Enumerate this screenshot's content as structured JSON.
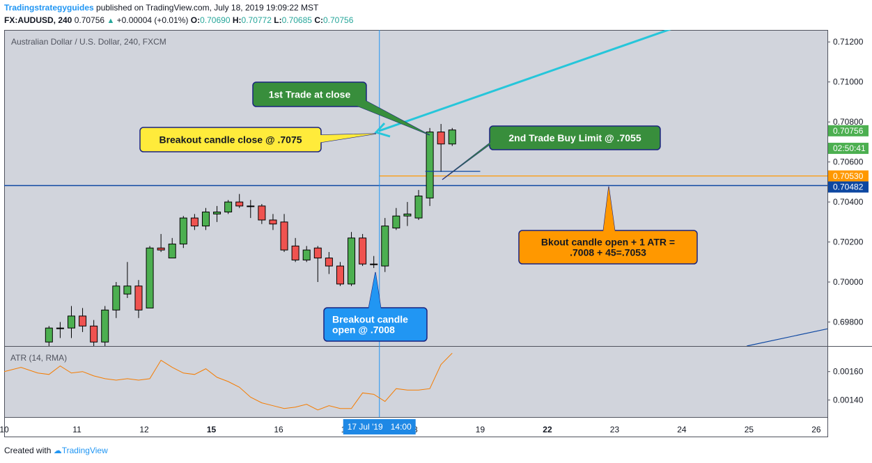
{
  "header": {
    "author": "Tradingstrategyguides",
    "published": " published on TradingView.com, July 18, 2019 19:09:22 MST",
    "symbol": "FX:AUDUSD, 240",
    "last": "0.70756",
    "change": "+0.00004 (+0.01%)",
    "o_label": "O:",
    "o_value": "0.70690",
    "h_label": "H:",
    "h_value": "0.70772",
    "l_label": "L:",
    "l_value": "0.70685",
    "c_label": "C:",
    "c_value": "0.70756"
  },
  "footer": {
    "created_with": "Created with",
    "brand": "TradingView"
  },
  "colors": {
    "background": "#d1d4dc",
    "up": "#4caf50",
    "down": "#ef5350",
    "atr_line": "#f57c00",
    "trend_cyan": "#26c6da",
    "hline_navy": "#0d47a1",
    "hline_orange": "#ff9800"
  },
  "chart_data": {
    "type": "candlestick",
    "title": "Australian Dollar / U.S. Dollar, 240, FXCM",
    "y_range": [
      0.6968,
      0.7126
    ],
    "y_ticks": [
      "0.71200",
      "0.71000",
      "0.70800",
      "0.70600",
      "0.70400",
      "0.70200",
      "0.70000",
      "0.69800"
    ],
    "x_ticks": [
      {
        "label": "10",
        "x": 0.0
      },
      {
        "label": "11",
        "x": 6.5
      },
      {
        "label": "12",
        "x": 12.5
      },
      {
        "label": "15",
        "x": 18.5
      },
      {
        "label": "16",
        "x": 24.5
      },
      {
        "label": "17",
        "x": 30.5
      },
      {
        "label": "18",
        "x": 36.5
      },
      {
        "label": "19",
        "x": 42.5
      },
      {
        "label": "22",
        "x": 48.5
      },
      {
        "label": "23",
        "x": 54.5
      },
      {
        "label": "24",
        "x": 60.5
      },
      {
        "label": "25",
        "x": 66.5
      },
      {
        "label": "26",
        "x": 72.5
      }
    ],
    "x_range": [
      0,
      73.5
    ],
    "candles": [
      {
        "x": 4,
        "o": 0.697,
        "h": 0.6978,
        "l": 0.6965,
        "c": 0.6977
      },
      {
        "x": 5,
        "o": 0.6977,
        "h": 0.698,
        "l": 0.6972,
        "c": 0.6977
      },
      {
        "x": 6,
        "o": 0.6977,
        "h": 0.6988,
        "l": 0.6972,
        "c": 0.6983
      },
      {
        "x": 7,
        "o": 0.6983,
        "h": 0.6987,
        "l": 0.6975,
        "c": 0.6978
      },
      {
        "x": 8,
        "o": 0.6978,
        "h": 0.6981,
        "l": 0.6968,
        "c": 0.697
      },
      {
        "x": 9,
        "o": 0.697,
        "h": 0.6988,
        "l": 0.6968,
        "c": 0.6986
      },
      {
        "x": 10,
        "o": 0.6986,
        "h": 0.7,
        "l": 0.6982,
        "c": 0.6998
      },
      {
        "x": 11,
        "o": 0.6994,
        "h": 0.701,
        "l": 0.6992,
        "c": 0.6998
      },
      {
        "x": 12,
        "o": 0.6998,
        "h": 0.7001,
        "l": 0.6982,
        "c": 0.6986
      },
      {
        "x": 13,
        "o": 0.6987,
        "h": 0.7018,
        "l": 0.6987,
        "c": 0.7017
      },
      {
        "x": 14,
        "o": 0.7017,
        "h": 0.7024,
        "l": 0.7015,
        "c": 0.7016
      },
      {
        "x": 15,
        "o": 0.7012,
        "h": 0.7022,
        "l": 0.7012,
        "c": 0.7019
      },
      {
        "x": 16,
        "o": 0.7019,
        "h": 0.7033,
        "l": 0.7017,
        "c": 0.7032
      },
      {
        "x": 17,
        "o": 0.7032,
        "h": 0.7034,
        "l": 0.7026,
        "c": 0.7028
      },
      {
        "x": 18,
        "o": 0.7028,
        "h": 0.7037,
        "l": 0.7026,
        "c": 0.7035
      },
      {
        "x": 19,
        "o": 0.7034,
        "h": 0.7038,
        "l": 0.703,
        "c": 0.7035
      },
      {
        "x": 20,
        "o": 0.7035,
        "h": 0.7041,
        "l": 0.7034,
        "c": 0.704
      },
      {
        "x": 21,
        "o": 0.704,
        "h": 0.7044,
        "l": 0.7037,
        "c": 0.7038
      },
      {
        "x": 22,
        "o": 0.7038,
        "h": 0.7041,
        "l": 0.7032,
        "c": 0.7038
      },
      {
        "x": 23,
        "o": 0.7038,
        "h": 0.7039,
        "l": 0.7029,
        "c": 0.7031
      },
      {
        "x": 24,
        "o": 0.7031,
        "h": 0.7034,
        "l": 0.7026,
        "c": 0.7029
      },
      {
        "x": 25,
        "o": 0.703,
        "h": 0.7034,
        "l": 0.7015,
        "c": 0.7016
      },
      {
        "x": 26,
        "o": 0.7018,
        "h": 0.7022,
        "l": 0.701,
        "c": 0.7011
      },
      {
        "x": 27,
        "o": 0.7011,
        "h": 0.7018,
        "l": 0.701,
        "c": 0.7016
      },
      {
        "x": 28,
        "o": 0.7017,
        "h": 0.7018,
        "l": 0.7,
        "c": 0.7012
      },
      {
        "x": 29,
        "o": 0.7012,
        "h": 0.7015,
        "l": 0.7004,
        "c": 0.7008
      },
      {
        "x": 30,
        "o": 0.7008,
        "h": 0.701,
        "l": 0.6998,
        "c": 0.6999
      },
      {
        "x": 31,
        "o": 0.6999,
        "h": 0.7025,
        "l": 0.6998,
        "c": 0.7022
      },
      {
        "x": 32,
        "o": 0.7022,
        "h": 0.7024,
        "l": 0.7008,
        "c": 0.7009
      },
      {
        "x": 33,
        "o": 0.7009,
        "h": 0.7013,
        "l": 0.7007,
        "c": 0.7009
      },
      {
        "x": 34,
        "o": 0.7008,
        "h": 0.7032,
        "l": 0.7005,
        "c": 0.7028
      },
      {
        "x": 35,
        "o": 0.7027,
        "h": 0.7037,
        "l": 0.7026,
        "c": 0.7033
      },
      {
        "x": 36,
        "o": 0.7033,
        "h": 0.704,
        "l": 0.7028,
        "c": 0.7034
      },
      {
        "x": 37,
        "o": 0.7032,
        "h": 0.7046,
        "l": 0.7031,
        "c": 0.7043
      },
      {
        "x": 38,
        "o": 0.7042,
        "h": 0.7077,
        "l": 0.7038,
        "c": 0.7075
      },
      {
        "x": 39,
        "o": 0.7075,
        "h": 0.7079,
        "l": 0.7055,
        "c": 0.7069
      },
      {
        "x": 40,
        "o": 0.7069,
        "h": 0.7077,
        "l": 0.7068,
        "c": 0.7076
      }
    ],
    "hlines": [
      {
        "y": 0.7053,
        "label": "0.70530",
        "color": "#ff9800"
      },
      {
        "y": 0.70482,
        "label": "0.70482",
        "color": "#0d47a1"
      }
    ],
    "price_labels": [
      {
        "y": 0.70756,
        "label": "0.70756",
        "color": "#4caf50"
      },
      {
        "y": 0.70696,
        "label": "02:50:41",
        "color": "#4caf50"
      }
    ],
    "cursor": {
      "x": 33.5,
      "date_label": "17 Jul '19",
      "time_label": "14:00"
    },
    "annotations": [
      {
        "text": "1st Trade at close",
        "fill": "#388e3c",
        "text_color": "#ffffff"
      },
      {
        "text": "Breakout candle close @ .7075",
        "fill": "#ffeb3b",
        "text_color": "#131722"
      },
      {
        "text": "2nd Trade Buy Limit @ .7055",
        "fill": "#388e3c",
        "text_color": "#ffffff"
      },
      {
        "text_lines": [
          "Bkout candle open + 1 ATR =",
          ".7008 + 45=.7053"
        ],
        "fill": "#ff9800",
        "text_color": "#131722"
      },
      {
        "text_lines": [
          "Breakout candle",
          "open @ .7008"
        ],
        "fill": "#2196f3",
        "text_color": "#ffffff"
      }
    ],
    "atr": {
      "title": "ATR (14, RMA)",
      "y_range": [
        0.00128,
        0.00178
      ],
      "y_ticks": [
        "0.00160",
        "0.00140"
      ],
      "x": [
        0,
        1.5,
        3,
        4,
        5,
        6,
        7,
        8,
        9,
        10,
        11,
        12,
        13,
        14,
        15,
        16,
        17,
        18,
        19,
        20,
        21,
        22,
        23,
        24,
        25,
        26,
        27,
        28,
        29,
        30,
        31,
        32,
        33,
        34,
        35,
        36,
        37,
        38,
        39,
        40
      ],
      "values": [
        0.0016,
        0.00163,
        0.00159,
        0.00158,
        0.00164,
        0.00159,
        0.0016,
        0.00157,
        0.00155,
        0.00154,
        0.00155,
        0.00154,
        0.00155,
        0.00168,
        0.00163,
        0.00159,
        0.00158,
        0.00162,
        0.00156,
        0.00153,
        0.00149,
        0.00142,
        0.00138,
        0.00136,
        0.00134,
        0.00135,
        0.00137,
        0.00133,
        0.00136,
        0.00134,
        0.00134,
        0.00145,
        0.00144,
        0.00139,
        0.00148,
        0.00147,
        0.00147,
        0.00148,
        0.00165,
        0.00173
      ]
    }
  }
}
